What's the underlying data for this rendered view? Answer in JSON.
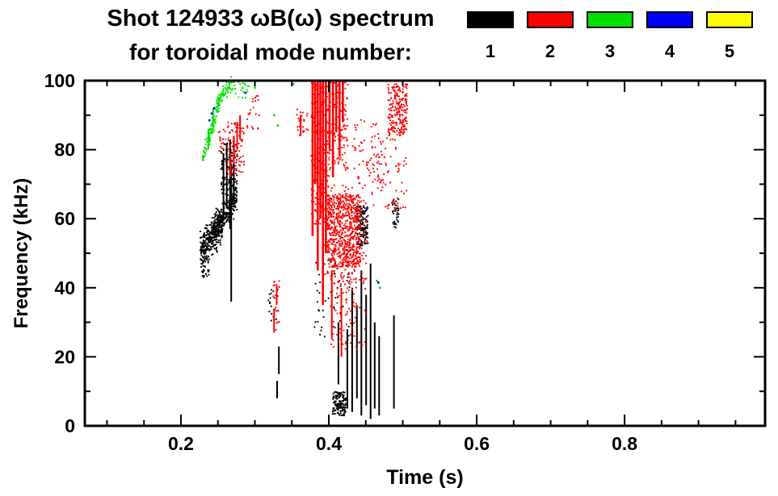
{
  "header": {
    "title_line1": "Shot 124933 ωB(ω) spectrum",
    "title_line2": "for toroidal mode number:"
  },
  "legend": {
    "items": [
      {
        "label": "1",
        "color": "#000000"
      },
      {
        "label": "2",
        "color": "#ff0000"
      },
      {
        "label": "3",
        "color": "#00e000"
      },
      {
        "label": "4",
        "color": "#0000ff"
      },
      {
        "label": "5",
        "color": "#ffff00"
      }
    ]
  },
  "chart_data": {
    "type": "scatter",
    "title": "Shot 124933 ωB(ω) spectrum for toroidal mode number 1-5",
    "xlabel": "Time (s)",
    "ylabel": "Frequency (kHz)",
    "xlim": [
      0.07,
      0.99
    ],
    "ylim": [
      0,
      100
    ],
    "x_ticks": [
      {
        "v": 0.2,
        "label": "0.2"
      },
      {
        "v": 0.4,
        "label": "0.4"
      },
      {
        "v": 0.6,
        "label": "0.6"
      },
      {
        "v": 0.8,
        "label": "0.8"
      }
    ],
    "y_ticks": [
      {
        "v": 0,
        "label": "0"
      },
      {
        "v": 20,
        "label": "20"
      },
      {
        "v": 40,
        "label": "40"
      },
      {
        "v": 60,
        "label": "60"
      },
      {
        "v": 80,
        "label": "80"
      },
      {
        "v": 100,
        "label": "100"
      }
    ],
    "x_minor_step": 0.05,
    "y_minor_step": 10,
    "grid": false,
    "legend_position": "top-right",
    "series": [
      {
        "name": "1",
        "color": "#000000",
        "elements": [
          {
            "kind": "band",
            "t": [
              0.226,
              0.256
            ],
            "f": [
              51,
              58
            ],
            "spread": 4.5,
            "n": 330
          },
          {
            "kind": "band",
            "t": [
              0.244,
              0.276
            ],
            "f": [
              57,
              66
            ],
            "spread": 4.0,
            "n": 260
          },
          {
            "kind": "blob",
            "t": [
              0.227,
              0.238
            ],
            "f": [
              43,
              49
            ],
            "n": 35
          },
          {
            "kind": "blob",
            "t": [
              0.254,
              0.276
            ],
            "f": [
              67,
              82
            ],
            "n": 110
          },
          {
            "kind": "streaks",
            "w": 2,
            "lines": [
              {
                "t": 0.2575,
                "f": [
                  60,
                  79
                ]
              },
              {
                "t": 0.262,
                "f": [
                  63,
                  82
                ]
              },
              {
                "t": 0.2665,
                "f": [
                  57,
                  83
                ]
              },
              {
                "t": 0.2715,
                "f": [
                  65,
                  84
                ]
              },
              {
                "t": 0.268,
                "f": [
                  36,
                  76
                ]
              },
              {
                "t": 0.33,
                "f": [
                  8,
                  13
                ]
              },
              {
                "t": 0.3325,
                "f": [
                  15,
                  23
                ]
              },
              {
                "t": 0.413,
                "f": [
                  12,
                  30
                ]
              },
              {
                "t": 0.425,
                "f": [
                  5,
                  28
                ]
              },
              {
                "t": 0.4315,
                "f": [
                  4,
                  40
                ]
              },
              {
                "t": 0.438,
                "f": [
                  8,
                  35
                ]
              },
              {
                "t": 0.444,
                "f": [
                  3,
                  45
                ]
              },
              {
                "t": 0.4505,
                "f": [
                  6,
                  38
                ]
              },
              {
                "t": 0.4565,
                "f": [
                  2,
                  47
                ]
              },
              {
                "t": 0.462,
                "f": [
                  5,
                  30
                ]
              },
              {
                "t": 0.468,
                "f": [
                  3,
                  26
                ]
              },
              {
                "t": 0.488,
                "f": [
                  5,
                  32
                ]
              }
            ]
          },
          {
            "kind": "blob",
            "t": [
              0.405,
              0.423
            ],
            "f": [
              3,
              10
            ],
            "n": 150
          },
          {
            "kind": "blob",
            "t": [
              0.438,
              0.453
            ],
            "f": [
              52,
              64
            ],
            "n": 140
          },
          {
            "kind": "blob",
            "t": [
              0.486,
              0.495
            ],
            "f": [
              57,
              66
            ],
            "n": 40
          },
          {
            "kind": "blob",
            "t": [
              0.38,
              0.43
            ],
            "f": [
              25,
              50
            ],
            "n": 55
          },
          {
            "kind": "blob",
            "t": [
              0.318,
              0.332
            ],
            "f": [
              30,
              40
            ],
            "n": 16
          }
        ]
      },
      {
        "name": "2",
        "color": "#ff0000",
        "elements": [
          {
            "kind": "streaks",
            "w": 2,
            "lines": [
              {
                "t": 0.267,
                "f": [
                  72,
                  79
                ]
              },
              {
                "t": 0.2715,
                "f": [
                  76,
                  84
                ]
              },
              {
                "t": 0.276,
                "f": [
                  80,
                  88
                ]
              },
              {
                "t": 0.28,
                "f": [
                  83,
                  90
                ]
              },
              {
                "t": 0.326,
                "f": [
                  27,
                  34
                ]
              },
              {
                "t": 0.3295,
                "f": [
                  35,
                  41
                ]
              },
              {
                "t": 0.362,
                "f": [
                  84,
                  90
                ]
              },
              {
                "t": 0.404,
                "f": [
                  25,
                  45
                ]
              },
              {
                "t": 0.417,
                "f": [
                  20,
                  40
                ]
              }
            ]
          },
          {
            "kind": "streaks",
            "w": 2.6,
            "lines": [
              {
                "t": 0.378,
                "f": [
                  55,
                  100
                ]
              },
              {
                "t": 0.3815,
                "f": [
                  70,
                  100
                ]
              },
              {
                "t": 0.385,
                "f": [
                  45,
                  100
                ]
              },
              {
                "t": 0.3885,
                "f": [
                  60,
                  100
                ]
              },
              {
                "t": 0.392,
                "f": [
                  35,
                  100
                ]
              },
              {
                "t": 0.396,
                "f": [
                  50,
                  100
                ]
              },
              {
                "t": 0.401,
                "f": [
                  80,
                  100
                ]
              },
              {
                "t": 0.4055,
                "f": [
                  72,
                  100
                ]
              },
              {
                "t": 0.41,
                "f": [
                  85,
                  100
                ]
              },
              {
                "t": 0.4145,
                "f": [
                  78,
                  100
                ]
              },
              {
                "t": 0.419,
                "f": [
                  88,
                  100
                ]
              }
            ]
          },
          {
            "kind": "blob",
            "t": [
              0.262,
              0.286
            ],
            "f": [
              72,
              88
            ],
            "n": 80
          },
          {
            "kind": "blob",
            "t": [
              0.251,
              0.261
            ],
            "f": [
              79,
              86
            ],
            "n": 18
          },
          {
            "kind": "blob",
            "t": [
              0.324,
              0.333
            ],
            "f": [
              26,
              42
            ],
            "n": 25
          },
          {
            "kind": "blob",
            "t": [
              0.376,
              0.401
            ],
            "f": [
              58,
              100
            ],
            "n": 220
          },
          {
            "kind": "blob",
            "t": [
              0.4,
              0.426
            ],
            "f": [
              74,
              100
            ],
            "n": 130
          },
          {
            "kind": "blob",
            "t": [
              0.398,
              0.443
            ],
            "f": [
              46,
              67
            ],
            "n": 650
          },
          {
            "kind": "blob",
            "t": [
              0.394,
              0.452
            ],
            "f": [
              41,
              70
            ],
            "n": 170
          },
          {
            "kind": "blob",
            "t": [
              0.402,
              0.45
            ],
            "f": [
              22,
              45
            ],
            "n": 100
          },
          {
            "kind": "blob",
            "t": [
              0.48,
              0.506
            ],
            "f": [
              84,
              99
            ],
            "n": 230
          },
          {
            "kind": "blob",
            "t": [
              0.458,
              0.506
            ],
            "f": [
              62,
              84
            ],
            "n": 80
          },
          {
            "kind": "blob",
            "t": [
              0.432,
              0.472
            ],
            "f": [
              70,
              90
            ],
            "n": 60
          },
          {
            "kind": "blob",
            "t": [
              0.288,
              0.306
            ],
            "f": [
              86,
              96
            ],
            "n": 22
          },
          {
            "kind": "blob",
            "t": [
              0.356,
              0.372
            ],
            "f": [
              84,
              92
            ],
            "n": 24
          }
        ]
      },
      {
        "name": "3",
        "color": "#00e000",
        "elements": [
          {
            "kind": "band",
            "t": [
              0.229,
              0.252
            ],
            "f": [
              77,
              94
            ],
            "spread": 2.5,
            "n": 100
          },
          {
            "kind": "band",
            "t": [
              0.248,
              0.268
            ],
            "f": [
              93,
              100
            ],
            "spread": 2.0,
            "n": 55
          },
          {
            "kind": "streaks",
            "w": 2,
            "lines": [
              {
                "t": 0.237,
                "f": [
                  80,
                  86
                ]
              },
              {
                "t": 0.2435,
                "f": [
                  86,
                  92
                ]
              }
            ]
          },
          {
            "kind": "blob",
            "t": [
              0.262,
              0.292
            ],
            "f": [
              95,
              100
            ],
            "n": 40
          },
          {
            "kind": "dots",
            "pts": [
              [
                0.3,
                98
              ],
              [
                0.326,
                90
              ],
              [
                0.331,
                87
              ],
              [
                0.352,
                99
              ],
              [
                0.465,
                42
              ],
              [
                0.469,
                40
              ]
            ]
          }
        ]
      },
      {
        "name": "4",
        "color": "#0000ff",
        "elements": [
          {
            "kind": "dots",
            "pts": [
              [
                0.2385,
                88.5
              ],
              [
                0.2415,
                90.5
              ],
              [
                0.245,
                92
              ],
              [
                0.287,
                96.5
              ],
              [
                0.452,
                63
              ],
              [
                0.467,
                41.5
              ]
            ]
          }
        ]
      },
      {
        "name": "5",
        "color": "#ffff00",
        "elements": []
      }
    ]
  }
}
